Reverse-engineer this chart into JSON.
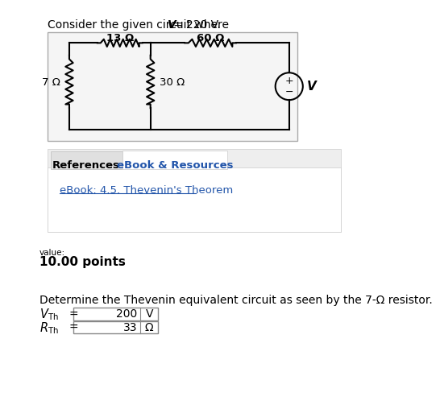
{
  "title_text": "Consider the given circuit where ",
  "title_italic": "V",
  "title_end": "= 220 V.",
  "resistor_13_label": "13 Ω",
  "resistor_60_label": "60 Ω",
  "resistor_7_label": "7 Ω",
  "resistor_30_label": "30 Ω",
  "voltage_label": "V",
  "tab1_label": "References",
  "tab2_label": "eBook & Resources",
  "ebook_link": "eBook: 4.5. Thevenin's Theorem",
  "value_label": "value:",
  "points_label": "10.00 points",
  "question_text": "Determine the Thevenin equivalent circuit as seen by the 7-Ω resistor.",
  "vth_value": "200",
  "vth_unit": "V",
  "rth_value": "33",
  "rth_unit": "Ω",
  "bg_color": "#ffffff",
  "link_color": "#2255aa"
}
